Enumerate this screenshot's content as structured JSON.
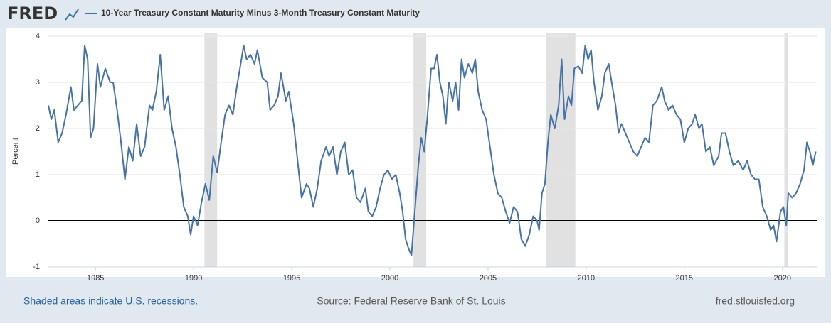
{
  "logo": "FRED",
  "footer": {
    "note": "Shaded areas indicate U.S. recessions.",
    "source": "Source: Federal Reserve Bank of St. Louis",
    "site": "fred.stlouisfed.org"
  },
  "chart_data": {
    "type": "line",
    "ylabel": "Percent",
    "xlim": [
      1982.6,
      2021.75
    ],
    "ylim": [
      -1,
      4
    ],
    "yticks": [
      -1,
      0,
      1,
      2,
      3,
      4
    ],
    "xticks": [
      1985,
      1990,
      1995,
      2000,
      2005,
      2010,
      2015,
      2020
    ],
    "grid": true,
    "recession_color": "#e1e1e1",
    "recessions": [
      [
        1990.55,
        1991.2
      ],
      [
        2001.2,
        2001.85
      ],
      [
        2007.95,
        2009.45
      ],
      [
        2020.1,
        2020.3
      ]
    ],
    "x": [
      1982.6,
      1982.75,
      1982.9,
      1983.1,
      1983.3,
      1983.5,
      1983.75,
      1983.9,
      1984.1,
      1984.3,
      1984.45,
      1984.6,
      1984.75,
      1984.9,
      1985.1,
      1985.25,
      1985.5,
      1985.75,
      1985.9,
      1986.1,
      1986.3,
      1986.5,
      1986.7,
      1986.9,
      1987.1,
      1987.3,
      1987.5,
      1987.75,
      1987.9,
      1988.1,
      1988.3,
      1988.5,
      1988.7,
      1988.9,
      1989.1,
      1989.3,
      1989.5,
      1989.7,
      1989.85,
      1990.0,
      1990.2,
      1990.4,
      1990.6,
      1990.8,
      1991.0,
      1991.2,
      1991.4,
      1991.6,
      1991.8,
      1992.0,
      1992.2,
      1992.4,
      1992.55,
      1992.7,
      1992.9,
      1993.1,
      1993.25,
      1993.5,
      1993.75,
      1993.9,
      1994.1,
      1994.3,
      1994.45,
      1994.7,
      1994.85,
      1995.1,
      1995.3,
      1995.5,
      1995.75,
      1995.9,
      1996.1,
      1996.3,
      1996.5,
      1996.75,
      1996.9,
      1997.1,
      1997.3,
      1997.5,
      1997.7,
      1997.9,
      1998.1,
      1998.3,
      1998.5,
      1998.75,
      1998.9,
      1999.1,
      1999.3,
      1999.5,
      1999.7,
      1999.9,
      2000.1,
      2000.3,
      2000.5,
      2000.65,
      2000.8,
      2000.95,
      2001.1,
      2001.25,
      2001.45,
      2001.6,
      2001.75,
      2001.9,
      2002.1,
      2002.25,
      2002.4,
      2002.55,
      2002.7,
      2002.85,
      2003.0,
      2003.2,
      2003.35,
      2003.5,
      2003.65,
      2003.8,
      2004.0,
      2004.2,
      2004.35,
      2004.5,
      2004.7,
      2004.9,
      2005.1,
      2005.3,
      2005.5,
      2005.7,
      2005.9,
      2006.1,
      2006.3,
      2006.5,
      2006.7,
      2006.9,
      2007.1,
      2007.3,
      2007.5,
      2007.6,
      2007.75,
      2007.9,
      2008.05,
      2008.2,
      2008.4,
      2008.6,
      2008.75,
      2008.9,
      2009.1,
      2009.25,
      2009.4,
      2009.6,
      2009.8,
      2009.95,
      2010.1,
      2010.25,
      2010.4,
      2010.6,
      2010.8,
      2010.95,
      2011.15,
      2011.3,
      2011.5,
      2011.65,
      2011.8,
      2012.0,
      2012.2,
      2012.4,
      2012.6,
      2012.8,
      2013.0,
      2013.2,
      2013.4,
      2013.6,
      2013.85,
      2014.0,
      2014.2,
      2014.4,
      2014.6,
      2014.8,
      2015.0,
      2015.2,
      2015.4,
      2015.55,
      2015.75,
      2015.9,
      2016.1,
      2016.3,
      2016.5,
      2016.75,
      2016.9,
      2017.1,
      2017.3,
      2017.5,
      2017.75,
      2018.0,
      2018.2,
      2018.4,
      2018.6,
      2018.8,
      2019.0,
      2019.2,
      2019.4,
      2019.55,
      2019.7,
      2019.9,
      2020.05,
      2020.2,
      2020.3,
      2020.5,
      2020.7,
      2020.9,
      2021.1,
      2021.25,
      2021.4,
      2021.55,
      2021.7
    ],
    "series": [
      {
        "name": "10-Year Treasury Constant Maturity Minus 3-Month Treasury Constant Maturity",
        "color": "#4572a7",
        "values": [
          2.5,
          2.2,
          2.4,
          1.7,
          1.9,
          2.3,
          2.9,
          2.4,
          2.5,
          2.6,
          3.8,
          3.5,
          1.8,
          2.0,
          3.4,
          2.9,
          3.3,
          3.0,
          3.0,
          2.4,
          1.7,
          0.9,
          1.6,
          1.3,
          2.1,
          1.4,
          1.6,
          2.5,
          2.4,
          2.8,
          3.6,
          2.4,
          2.7,
          2.0,
          1.6,
          1.0,
          0.3,
          0.1,
          -0.3,
          0.1,
          -0.1,
          0.4,
          0.8,
          0.45,
          1.4,
          1.05,
          1.7,
          2.3,
          2.5,
          2.3,
          2.9,
          3.4,
          3.8,
          3.5,
          3.6,
          3.4,
          3.7,
          3.1,
          3.0,
          2.4,
          2.5,
          2.7,
          3.2,
          2.6,
          2.8,
          2.1,
          1.3,
          0.5,
          0.8,
          0.7,
          0.3,
          0.7,
          1.3,
          1.6,
          1.4,
          1.6,
          1.0,
          1.5,
          1.7,
          1.0,
          1.1,
          0.5,
          0.4,
          0.7,
          0.2,
          0.1,
          0.3,
          0.7,
          1.0,
          1.1,
          0.9,
          1.0,
          0.6,
          0.2,
          -0.4,
          -0.6,
          -0.75,
          0.1,
          1.2,
          1.8,
          1.5,
          2.2,
          3.3,
          3.3,
          3.6,
          3.0,
          2.7,
          2.1,
          3.0,
          2.6,
          3.0,
          2.4,
          3.5,
          3.1,
          3.4,
          3.2,
          3.5,
          2.8,
          2.4,
          2.2,
          1.6,
          1.0,
          0.6,
          0.5,
          0.2,
          -0.05,
          0.3,
          0.2,
          -0.4,
          -0.55,
          -0.3,
          0.1,
          0.0,
          -0.2,
          0.6,
          0.8,
          1.7,
          2.3,
          2.0,
          2.5,
          3.5,
          2.2,
          2.7,
          2.5,
          3.3,
          3.35,
          3.2,
          3.8,
          3.5,
          3.7,
          3.0,
          2.4,
          2.7,
          3.2,
          3.4,
          3.0,
          2.5,
          1.9,
          2.1,
          1.9,
          1.7,
          1.5,
          1.4,
          1.6,
          1.8,
          1.7,
          2.5,
          2.6,
          2.9,
          2.6,
          2.4,
          2.5,
          2.3,
          2.2,
          1.7,
          2.0,
          2.1,
          2.3,
          2.0,
          2.1,
          1.5,
          1.6,
          1.2,
          1.4,
          1.9,
          1.9,
          1.5,
          1.2,
          1.3,
          1.1,
          1.3,
          1.0,
          0.9,
          0.9,
          0.3,
          0.1,
          -0.2,
          -0.1,
          -0.45,
          0.2,
          0.3,
          -0.1,
          0.6,
          0.5,
          0.6,
          0.8,
          1.1,
          1.7,
          1.5,
          1.2,
          1.5
        ]
      }
    ]
  }
}
